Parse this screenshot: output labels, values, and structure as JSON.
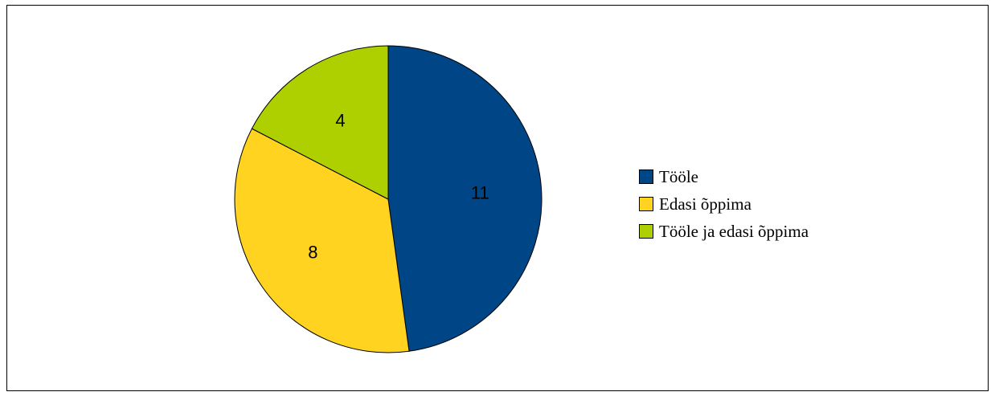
{
  "chart_data": {
    "type": "pie",
    "categories": [
      "Tööle",
      "Edasi õppima",
      "Tööle ja edasi õppima"
    ],
    "values": [
      11,
      8,
      4
    ],
    "colors": [
      "#004586",
      "#ffd320",
      "#aecf00"
    ],
    "title": "",
    "legend_position": "right",
    "start_angle_deg": 0,
    "direction": "clockwise"
  }
}
